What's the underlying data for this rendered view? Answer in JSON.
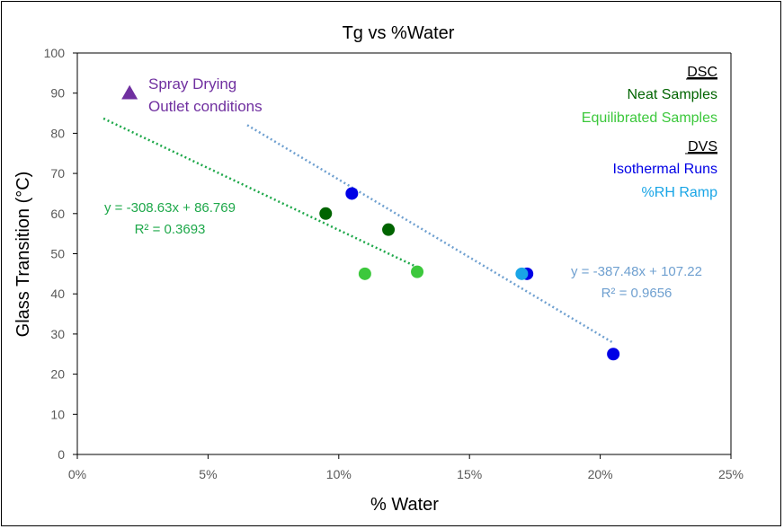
{
  "chart_data": {
    "type": "scatter",
    "title": "Tg vs %Water",
    "xlabel": "% Water",
    "ylabel": "Glass Transition (°C)",
    "xlim": [
      0,
      0.25
    ],
    "ylim": [
      0,
      100
    ],
    "x_ticks": [
      0,
      0.05,
      0.1,
      0.15,
      0.2,
      0.25
    ],
    "x_tick_labels": [
      "0%",
      "5%",
      "10%",
      "15%",
      "20%",
      "25%"
    ],
    "y_ticks": [
      0,
      10,
      20,
      30,
      40,
      50,
      60,
      70,
      80,
      90,
      100
    ],
    "y_tick_labels": [
      "0",
      "10",
      "20",
      "30",
      "40",
      "50",
      "60",
      "70",
      "80",
      "90",
      "100"
    ],
    "grid": false,
    "series": [
      {
        "name": "Spray Drying Outlet conditions",
        "marker": "triangle",
        "color": "#7030A0",
        "points": [
          {
            "x": 0.02,
            "y": 90
          }
        ]
      },
      {
        "name": "Neat Samples",
        "group": "DSC",
        "marker": "circle",
        "color": "#006400",
        "points": [
          {
            "x": 0.095,
            "y": 60
          },
          {
            "x": 0.119,
            "y": 56
          }
        ]
      },
      {
        "name": "Equilibrated Samples",
        "group": "DSC",
        "marker": "circle",
        "color": "#3CC83C",
        "points": [
          {
            "x": 0.11,
            "y": 45
          },
          {
            "x": 0.13,
            "y": 45.5
          }
        ]
      },
      {
        "name": "Isothermal Runs",
        "group": "DVS",
        "marker": "circle",
        "color": "#0000E6",
        "points": [
          {
            "x": 0.105,
            "y": 65
          },
          {
            "x": 0.172,
            "y": 45
          },
          {
            "x": 0.205,
            "y": 25
          }
        ]
      },
      {
        "name": "%RH Ramp",
        "group": "DVS",
        "marker": "circle",
        "color": "#19A5E6",
        "points": [
          {
            "x": 0.17,
            "y": 45
          }
        ]
      }
    ],
    "trendlines": [
      {
        "label_eq": "y = -308.63x + 86.769",
        "label_r2": "R² = 0.3693",
        "slope": -308.63,
        "intercept": 86.769,
        "x_range": [
          0.01,
          0.13
        ],
        "color": "#1EA84A"
      },
      {
        "label_eq": "y = -387.48x + 107.22",
        "label_r2": "R² = 0.9656",
        "slope": -387.48,
        "intercept": 107.22,
        "x_range": [
          0.065,
          0.205
        ],
        "color": "#6FA0D0"
      }
    ],
    "legend": {
      "placement": "top-right",
      "groups": [
        {
          "header": "DSC",
          "entries": [
            {
              "label": "Neat Samples",
              "color": "#006400"
            },
            {
              "label": "Equilibrated Samples",
              "color": "#3CC83C"
            }
          ]
        },
        {
          "header": "DVS",
          "entries": [
            {
              "label": "Isothermal Runs",
              "color": "#0000E6"
            },
            {
              "label": "%RH Ramp",
              "color": "#19A5E6"
            }
          ]
        }
      ]
    },
    "annotations": [
      {
        "lines": [
          "Spray Drying",
          "Outlet conditions"
        ],
        "color": "#7030A0"
      }
    ]
  }
}
